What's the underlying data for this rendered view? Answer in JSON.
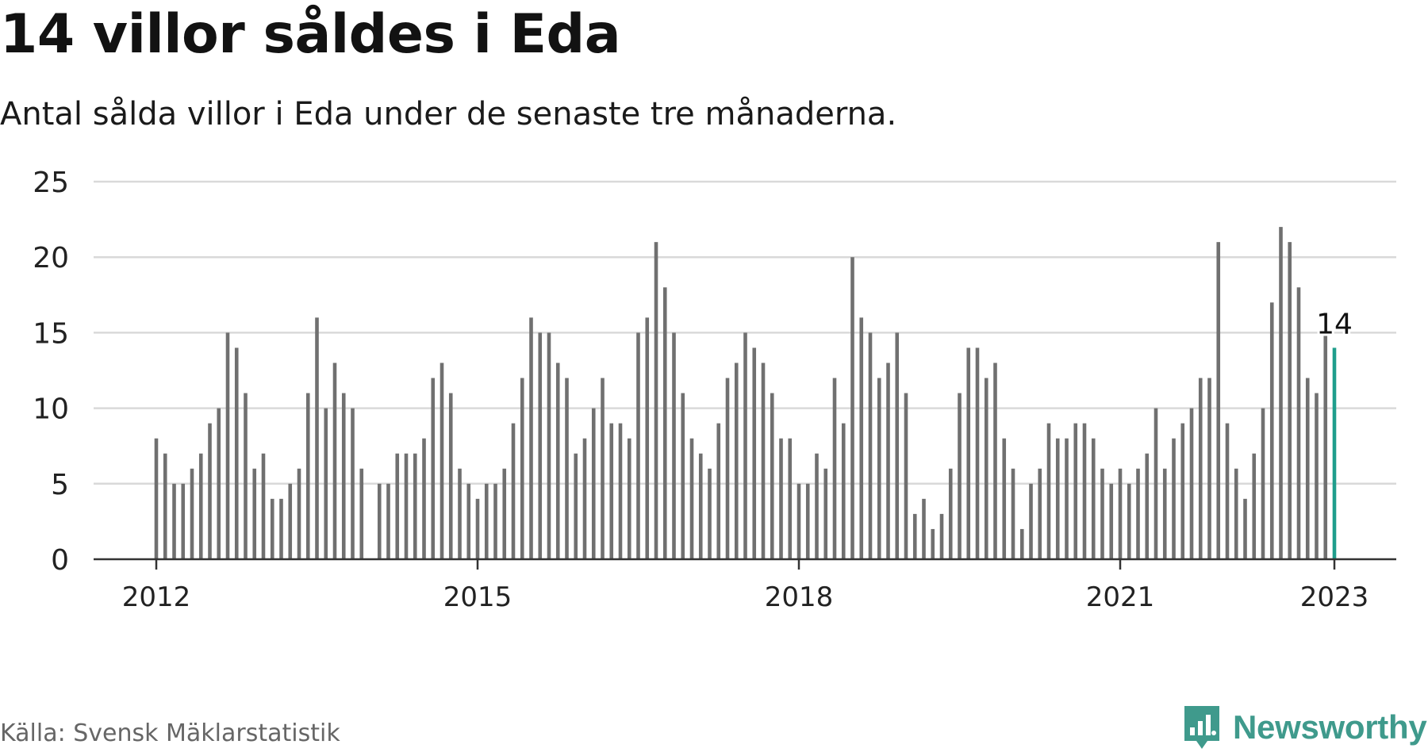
{
  "title": "14 villor såldes i Eda",
  "subtitle": "Antal sålda villor i Eda under de senaste tre månaderna.",
  "source": "Källa: Svensk Mäklarstatistik",
  "brand": {
    "name": "Newsworthy",
    "icon": "newsworthy-logo-icon"
  },
  "colors": {
    "bar": "#707070",
    "highlight": "#1f9e8c",
    "grid": "#d9d9d9",
    "axis": "#333333"
  },
  "chart_data": {
    "type": "bar",
    "title": "14 villor såldes i Eda",
    "subtitle": "Antal sålda villor i Eda under de senaste tre månaderna.",
    "xlabel": "",
    "ylabel": "",
    "ylim": [
      0,
      25
    ],
    "yticks": [
      "0",
      "5",
      "10",
      "15",
      "20",
      "25"
    ],
    "xticks": [
      "2012",
      "2015",
      "2018",
      "2021",
      "2023"
    ],
    "grid": true,
    "x_start": "2012-01",
    "x_end": "2023-01",
    "values": [
      8,
      7,
      5,
      5,
      6,
      7,
      9,
      10,
      15,
      14,
      11,
      6,
      7,
      4,
      4,
      5,
      6,
      11,
      16,
      10,
      13,
      11,
      10,
      6,
      0,
      5,
      5,
      7,
      7,
      7,
      8,
      12,
      13,
      11,
      6,
      5,
      4,
      5,
      5,
      6,
      9,
      12,
      16,
      15,
      15,
      13,
      12,
      7,
      8,
      10,
      12,
      9,
      9,
      8,
      15,
      16,
      21,
      18,
      15,
      11,
      8,
      7,
      6,
      9,
      12,
      13,
      15,
      14,
      13,
      11,
      8,
      8,
      5,
      5,
      7,
      6,
      12,
      9,
      20,
      16,
      15,
      12,
      13,
      15,
      11,
      3,
      4,
      2,
      3,
      6,
      11,
      14,
      14,
      12,
      13,
      8,
      6,
      2,
      5,
      6,
      9,
      8,
      8,
      9,
      9,
      8,
      6,
      5,
      6,
      5,
      6,
      7,
      10,
      6,
      8,
      9,
      10,
      12,
      12,
      21,
      9,
      6,
      4,
      7,
      10,
      17,
      22,
      21,
      18,
      12,
      11,
      15,
      14
    ],
    "highlight": {
      "label": "14",
      "value": 14
    }
  }
}
